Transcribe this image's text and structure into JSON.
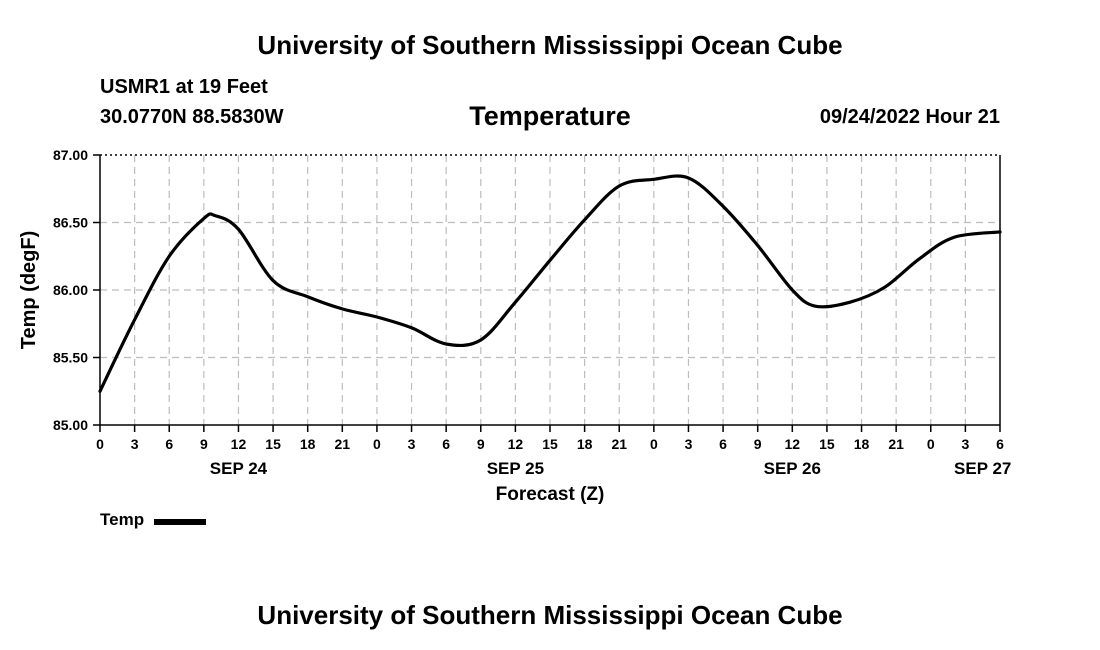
{
  "header": {
    "title": "University of Southern Mississippi Ocean Cube",
    "station": "USMR1 at 19 Feet",
    "coords": "30.0770N  88.5830W",
    "parameter": "Temperature",
    "datetime": "09/24/2022 Hour 21"
  },
  "footer": {
    "title": "University of Southern Mississippi Ocean Cube"
  },
  "legend": {
    "label": "Temp"
  },
  "chart_data": {
    "type": "line",
    "title": "Temperature",
    "xlabel": "Forecast (Z)",
    "ylabel": "Temp (degF)",
    "ylim": [
      85.0,
      87.0
    ],
    "y_ticks": [
      "85.00",
      "85.50",
      "86.00",
      "86.50",
      "87.00"
    ],
    "x_range_hours": [
      0,
      78
    ],
    "x_tick_labels": [
      "0",
      "3",
      "6",
      "9",
      "12",
      "15",
      "18",
      "21",
      "0",
      "3",
      "6",
      "9",
      "12",
      "15",
      "18",
      "21",
      "0",
      "3",
      "6",
      "9",
      "12",
      "15",
      "18",
      "21",
      "0",
      "3",
      "6"
    ],
    "date_labels": [
      {
        "label": "SEP 24",
        "hour": 12
      },
      {
        "label": "SEP 25",
        "hour": 36
      },
      {
        "label": "SEP 26",
        "hour": 60
      },
      {
        "label": "SEP 27",
        "hour": 76.5
      }
    ],
    "series": [
      {
        "name": "Temp",
        "color": "#000000",
        "x": [
          0,
          3,
          6,
          9,
          10,
          12,
          15,
          18,
          21,
          24,
          27,
          30,
          33,
          36,
          39,
          42,
          45,
          48,
          51,
          54,
          57,
          60,
          62,
          65,
          68,
          71,
          74,
          78
        ],
        "y": [
          85.25,
          85.78,
          86.25,
          86.53,
          86.55,
          86.45,
          86.07,
          85.95,
          85.86,
          85.8,
          85.72,
          85.6,
          85.63,
          85.91,
          86.22,
          86.52,
          86.77,
          86.82,
          86.83,
          86.62,
          86.33,
          86.0,
          85.88,
          85.91,
          86.02,
          86.23,
          86.39,
          86.43
        ]
      }
    ]
  }
}
